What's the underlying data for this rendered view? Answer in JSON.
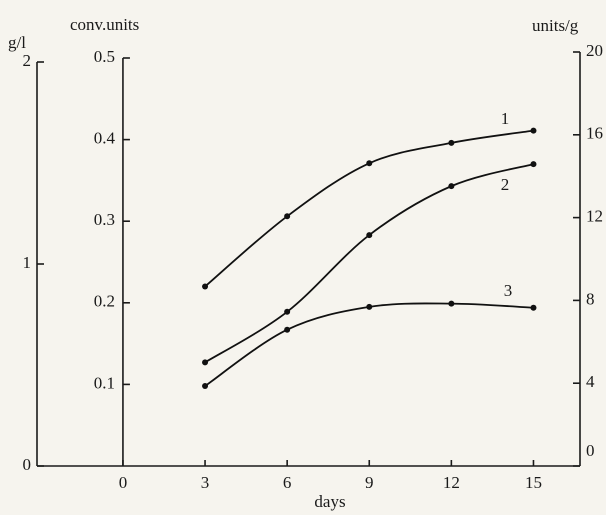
{
  "chart_data": {
    "type": "line",
    "x_label": "days",
    "y_label": "conv.units",
    "y2_label": "units/g",
    "y3_label": "g/l",
    "x": [
      3,
      6,
      9,
      12,
      15
    ],
    "xlim": [
      -3.14,
      16.7
    ],
    "xticks": [
      0,
      3,
      6,
      9,
      12,
      15
    ],
    "ylim": [
      0,
      0.5
    ],
    "yticks": [
      0.1,
      0.2,
      0.3,
      0.4,
      0.5
    ],
    "y2lim": [
      0,
      20
    ],
    "y2ticks": [
      0,
      4,
      8,
      12,
      16,
      20
    ],
    "y3lim": [
      0,
      2
    ],
    "y3ticks": [
      0,
      1,
      2
    ],
    "series": [
      {
        "name": "1",
        "color": "#111111",
        "values": [
          0.22,
          0.306,
          0.371,
          0.396,
          0.411
        ]
      },
      {
        "name": "2",
        "color": "#111111",
        "values": [
          0.127,
          0.189,
          0.283,
          0.343,
          0.37
        ]
      },
      {
        "name": "3",
        "color": "#111111",
        "values": [
          0.098,
          0.167,
          0.195,
          0.199,
          0.194
        ]
      }
    ]
  }
}
